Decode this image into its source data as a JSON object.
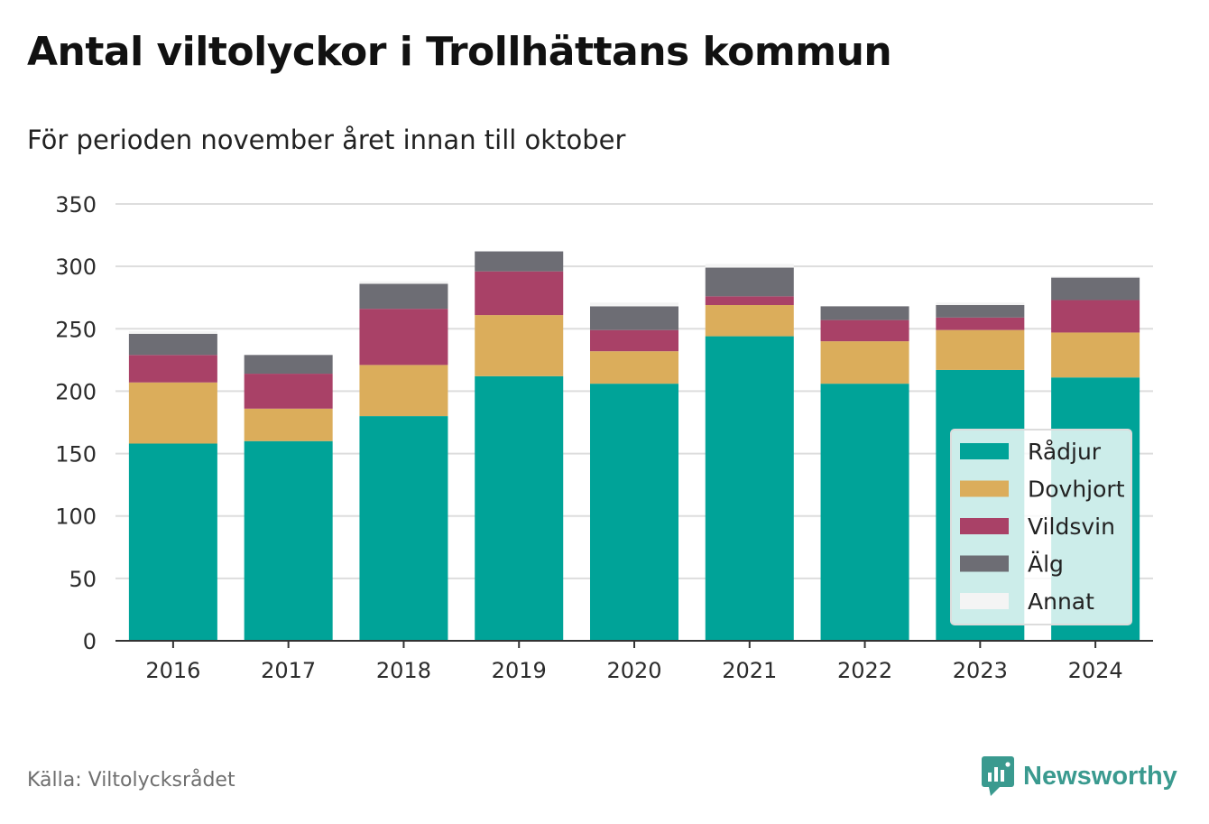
{
  "title": "Antal viltolyckor i Trollhättans kommun",
  "subtitle": "För perioden november året innan till oktober",
  "source": "Källa: Viltolycksrådet",
  "brand": {
    "name": "Newsworthy",
    "icon": "newsworthy-logo-icon"
  },
  "colors": {
    "Rådjur": "#00a398",
    "Dovhjort": "#dbad5b",
    "Vildsvin": "#a94167",
    "Älg": "#6d6d74",
    "Annat": "#f4f4f4"
  },
  "chart_data": {
    "type": "bar",
    "stacked": true,
    "categories": [
      "2016",
      "2017",
      "2018",
      "2019",
      "2020",
      "2021",
      "2022",
      "2023",
      "2024"
    ],
    "series": [
      {
        "name": "Rådjur",
        "values": [
          158,
          160,
          180,
          212,
          206,
          244,
          206,
          217,
          211
        ]
      },
      {
        "name": "Dovhjort",
        "values": [
          49,
          26,
          41,
          49,
          26,
          25,
          34,
          32,
          36
        ]
      },
      {
        "name": "Vildsvin",
        "values": [
          22,
          28,
          45,
          35,
          17,
          7,
          17,
          10,
          26
        ]
      },
      {
        "name": "Älg",
        "values": [
          17,
          15,
          20,
          16,
          19,
          23,
          11,
          10,
          18
        ]
      },
      {
        "name": "Annat",
        "values": [
          2,
          0,
          2,
          0,
          3,
          3,
          0,
          2,
          1
        ]
      }
    ],
    "ylim": [
      0,
      350
    ],
    "yticks": [
      0,
      50,
      100,
      150,
      200,
      250,
      300,
      350
    ],
    "grid": true,
    "legend": "bottom-right",
    "xlabel": "",
    "ylabel": ""
  }
}
